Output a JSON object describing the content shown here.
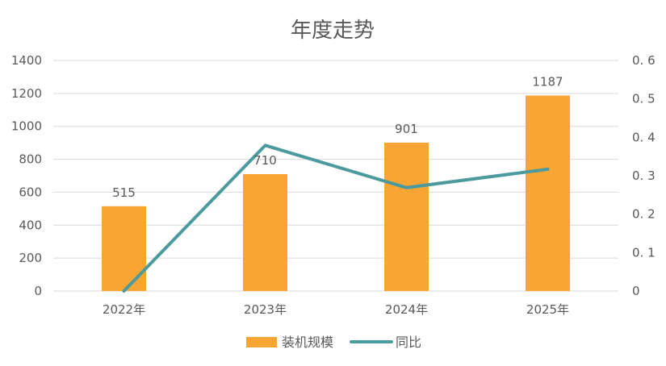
{
  "chart_data": {
    "type": "bar",
    "title": "年度走势",
    "categories": [
      "2022年",
      "2023年",
      "2024年",
      "2025年"
    ],
    "series": [
      {
        "name": "装机规模",
        "type": "bar",
        "axis": "left",
        "values": [
          515,
          710,
          901,
          1187
        ],
        "data_labels": [
          "515",
          "710",
          "901",
          "1187"
        ]
      },
      {
        "name": "同比",
        "type": "line",
        "axis": "right",
        "values": [
          0,
          0.379,
          0.269,
          0.317
        ]
      }
    ],
    "y_left": {
      "ylim": [
        0,
        1400
      ],
      "ticks": [
        0,
        200,
        400,
        600,
        800,
        1000,
        1200,
        1400
      ],
      "tick_labels": [
        "0",
        "200",
        "400",
        "600",
        "800",
        "1000",
        "1200",
        "1400"
      ]
    },
    "y_right": {
      "ylim": [
        0,
        0.6
      ],
      "ticks": [
        0,
        0.1,
        0.2,
        0.3,
        0.4,
        0.5,
        0.6
      ],
      "tick_labels": [
        "0",
        "0. 1",
        "0. 2",
        "0. 3",
        "0. 4",
        "0. 5",
        "0. 6"
      ]
    },
    "grid": true,
    "legend": "bottom",
    "colors": {
      "bar": "#F9A533",
      "line": "#4A9A9E",
      "grid": "#D9D9D9",
      "text": "#595959"
    }
  }
}
